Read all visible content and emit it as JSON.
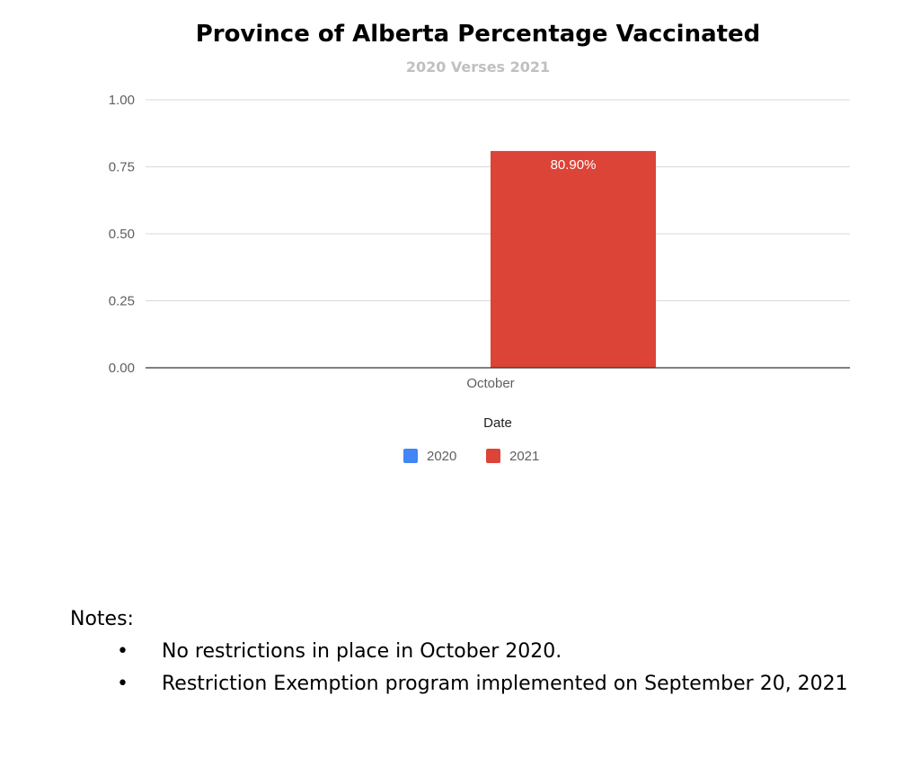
{
  "chart_data": {
    "type": "bar",
    "title": "Province of Alberta Percentage Vaccinated",
    "subtitle": "2020 Verses 2021",
    "xlabel": "Date",
    "ylabel": "",
    "categories": [
      "October"
    ],
    "series": [
      {
        "name": "2020",
        "values": [
          0
        ],
        "color": "#4285f4"
      },
      {
        "name": "2021",
        "values": [
          0.809
        ],
        "color": "#db4437",
        "data_labels": [
          "80.90%"
        ]
      }
    ],
    "ylim": [
      0,
      1
    ],
    "yticks": [
      "0.00",
      "0.25",
      "0.50",
      "0.75",
      "1.00"
    ],
    "grid": true,
    "legend_position": "bottom"
  },
  "notes": {
    "heading": "Notes:",
    "items": [
      "No restrictions in place in October 2020.",
      "Restriction Exemption program implemented on September 20, 2021"
    ]
  }
}
